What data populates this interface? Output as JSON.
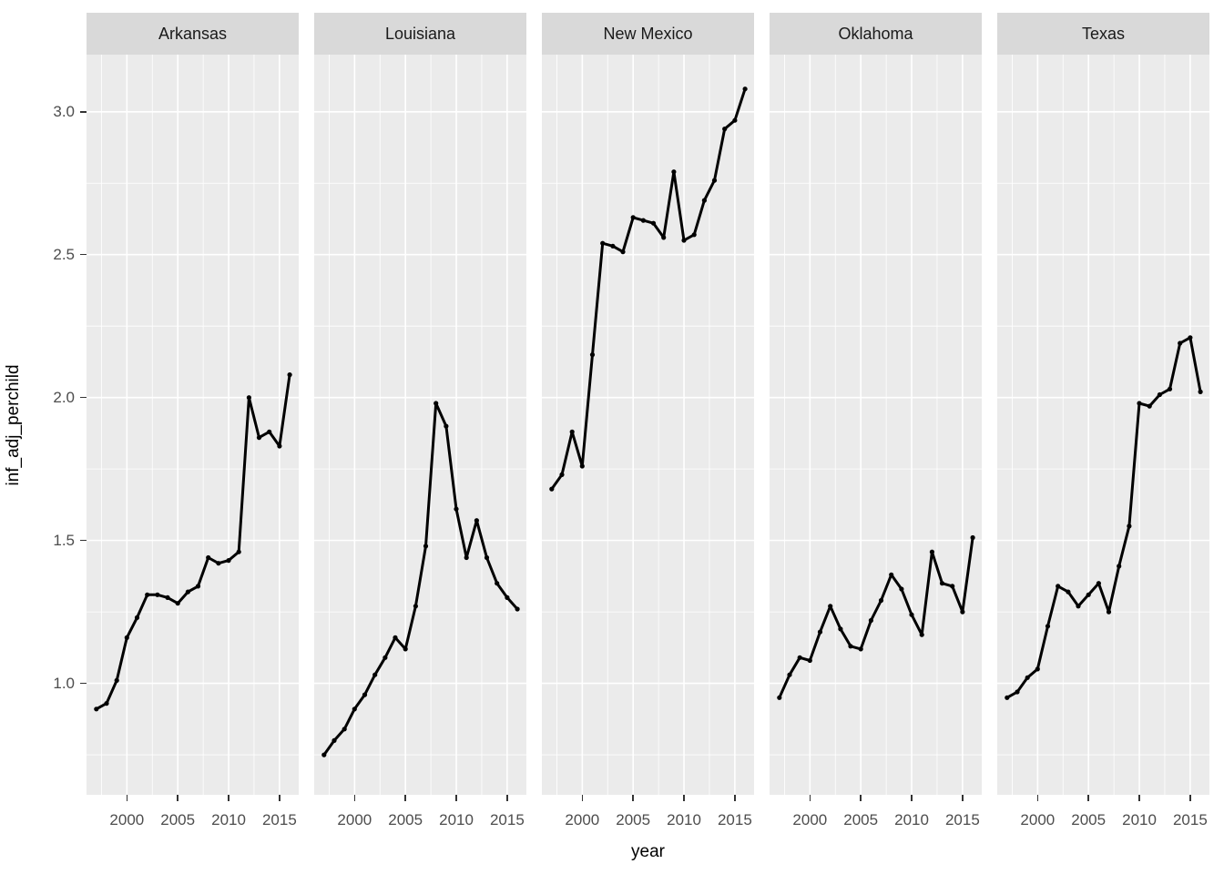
{
  "figure": {
    "background": "#FFFFFF",
    "panel_background": "#EBEBEB",
    "strip_background": "#D9D9D9",
    "gridline_color": "#FFFFFF",
    "line_color": "#000000",
    "point_color": "#000000",
    "tick_label_color": "#4D4D4D",
    "tick_mark_color": "#333333",
    "axis_title_color": "#000000"
  },
  "chart_data": {
    "type": "line",
    "title": "",
    "xlabel": "year",
    "ylabel": "inf_adj_perchild",
    "legend": "none",
    "grid": true,
    "facets": [
      "Arkansas",
      "Louisiana",
      "New Mexico",
      "Oklahoma",
      "Texas"
    ],
    "x": [
      1997,
      1998,
      1999,
      2000,
      2001,
      2002,
      2003,
      2004,
      2005,
      2006,
      2007,
      2008,
      2009,
      2010,
      2011,
      2012,
      2013,
      2014,
      2015,
      2016
    ],
    "series": [
      {
        "name": "Arkansas",
        "values": [
          0.91,
          0.93,
          1.01,
          1.16,
          1.23,
          1.31,
          1.31,
          1.3,
          1.28,
          1.32,
          1.34,
          1.44,
          1.42,
          1.43,
          1.46,
          2.0,
          1.86,
          1.88,
          1.83,
          2.08
        ]
      },
      {
        "name": "Louisiana",
        "values": [
          0.75,
          0.8,
          0.84,
          0.91,
          0.96,
          1.03,
          1.09,
          1.16,
          1.12,
          1.27,
          1.48,
          1.98,
          1.9,
          1.61,
          1.44,
          1.57,
          1.44,
          1.35,
          1.3,
          1.26
        ]
      },
      {
        "name": "New Mexico",
        "values": [
          1.68,
          1.73,
          1.88,
          1.76,
          2.15,
          2.54,
          2.53,
          2.51,
          2.63,
          2.62,
          2.61,
          2.56,
          2.79,
          2.55,
          2.57,
          2.69,
          2.76,
          2.94,
          2.97,
          3.08
        ]
      },
      {
        "name": "Oklahoma",
        "values": [
          0.95,
          1.03,
          1.09,
          1.08,
          1.18,
          1.27,
          1.19,
          1.13,
          1.12,
          1.22,
          1.29,
          1.38,
          1.33,
          1.24,
          1.17,
          1.46,
          1.35,
          1.34,
          1.25,
          1.51
        ]
      },
      {
        "name": "Texas",
        "values": [
          0.95,
          0.97,
          1.02,
          1.05,
          1.2,
          1.34,
          1.32,
          1.27,
          1.31,
          1.35,
          1.25,
          1.41,
          1.55,
          1.98,
          1.97,
          2.01,
          2.03,
          2.19,
          2.21,
          2.02
        ]
      }
    ],
    "x_ticks": [
      2000,
      2005,
      2010,
      2015
    ],
    "x_tick_labels": [
      "2000",
      "2005",
      "2010",
      "2015"
    ],
    "x_minor": [
      1997.5,
      2002.5,
      2007.5,
      2012.5,
      2017.5
    ],
    "y_ticks": [
      1.0,
      1.5,
      2.0,
      2.5,
      3.0
    ],
    "y_tick_labels": [
      "1.0",
      "1.5",
      "2.0",
      "2.5",
      "3.0"
    ],
    "y_minor": [
      0.75,
      1.25,
      1.75,
      2.25,
      2.75
    ],
    "xlim": [
      1996.03,
      2016.89
    ],
    "ylim": [
      0.61,
      3.2
    ]
  }
}
